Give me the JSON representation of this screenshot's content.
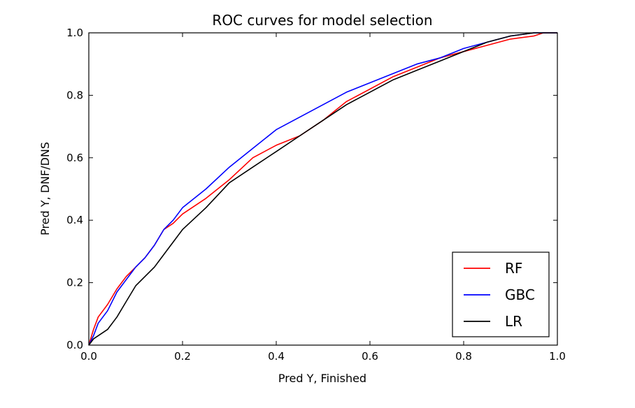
{
  "chart_data": {
    "type": "line",
    "title": "ROC curves for model selection",
    "xlabel": "Pred Y, Finished",
    "ylabel": "Pred Y, DNF/DNS",
    "xlim": [
      0.0,
      1.0
    ],
    "ylim": [
      0.0,
      1.0
    ],
    "xticks": [
      "0.0",
      "0.2",
      "0.4",
      "0.6",
      "0.8",
      "1.0"
    ],
    "yticks": [
      "0.0",
      "0.2",
      "0.4",
      "0.6",
      "0.8",
      "1.0"
    ],
    "grid": false,
    "legend_position": "lower right",
    "series": [
      {
        "name": "RF",
        "color": "#ff0000",
        "x": [
          0.0,
          0.01,
          0.02,
          0.04,
          0.06,
          0.08,
          0.1,
          0.12,
          0.14,
          0.16,
          0.18,
          0.2,
          0.25,
          0.3,
          0.35,
          0.4,
          0.45,
          0.5,
          0.55,
          0.6,
          0.65,
          0.7,
          0.75,
          0.8,
          0.85,
          0.9,
          0.95,
          0.97,
          1.0
        ],
        "y": [
          0.0,
          0.05,
          0.09,
          0.13,
          0.18,
          0.22,
          0.25,
          0.28,
          0.32,
          0.37,
          0.39,
          0.42,
          0.47,
          0.53,
          0.6,
          0.64,
          0.67,
          0.72,
          0.78,
          0.82,
          0.86,
          0.89,
          0.92,
          0.94,
          0.96,
          0.98,
          0.99,
          1.0,
          1.0
        ]
      },
      {
        "name": "GBC",
        "color": "#0000ff",
        "x": [
          0.0,
          0.01,
          0.02,
          0.04,
          0.06,
          0.08,
          0.1,
          0.12,
          0.14,
          0.16,
          0.18,
          0.2,
          0.25,
          0.3,
          0.35,
          0.4,
          0.45,
          0.5,
          0.55,
          0.6,
          0.65,
          0.7,
          0.75,
          0.8,
          0.85,
          0.9,
          0.95,
          0.97,
          1.0
        ],
        "y": [
          0.0,
          0.03,
          0.07,
          0.11,
          0.17,
          0.21,
          0.25,
          0.28,
          0.32,
          0.37,
          0.4,
          0.44,
          0.5,
          0.57,
          0.63,
          0.69,
          0.73,
          0.77,
          0.81,
          0.84,
          0.87,
          0.9,
          0.92,
          0.95,
          0.97,
          0.99,
          1.0,
          1.0,
          1.0
        ]
      },
      {
        "name": "LR",
        "color": "#000000",
        "x": [
          0.0,
          0.01,
          0.02,
          0.04,
          0.06,
          0.08,
          0.1,
          0.12,
          0.14,
          0.16,
          0.18,
          0.2,
          0.25,
          0.3,
          0.35,
          0.4,
          0.45,
          0.5,
          0.55,
          0.6,
          0.65,
          0.7,
          0.75,
          0.8,
          0.85,
          0.9,
          0.95,
          0.97,
          1.0
        ],
        "y": [
          0.0,
          0.02,
          0.03,
          0.05,
          0.09,
          0.14,
          0.19,
          0.22,
          0.25,
          0.29,
          0.33,
          0.37,
          0.44,
          0.52,
          0.57,
          0.62,
          0.67,
          0.72,
          0.77,
          0.81,
          0.85,
          0.88,
          0.91,
          0.94,
          0.97,
          0.99,
          1.0,
          1.0,
          1.0
        ]
      }
    ]
  }
}
